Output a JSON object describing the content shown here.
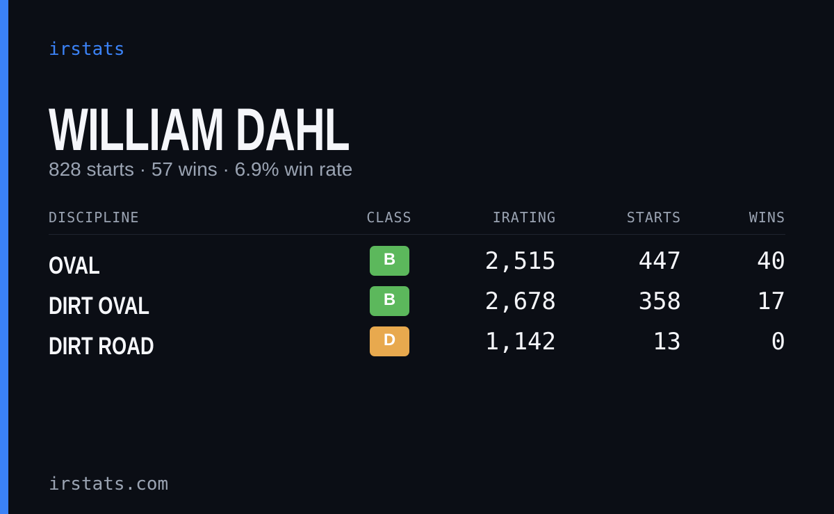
{
  "brand": "irstats",
  "driver": {
    "name": "WILLIAM DAHL",
    "summary": "828 starts · 57 wins · 6.9% win rate"
  },
  "table": {
    "headers": [
      "DISCIPLINE",
      "CLASS",
      "IRATING",
      "STARTS",
      "WINS"
    ],
    "rows": [
      {
        "discipline": "OVAL",
        "class": {
          "label": "B",
          "color": "#5cb85c"
        },
        "irating": "2,515",
        "starts": "447",
        "wins": "40"
      },
      {
        "discipline": "DIRT OVAL",
        "class": {
          "label": "B",
          "color": "#5cb85c"
        },
        "irating": "2,678",
        "starts": "358",
        "wins": "17"
      },
      {
        "discipline": "DIRT ROAD",
        "class": {
          "label": "D",
          "color": "#e8a94e"
        },
        "irating": "1,142",
        "starts": "13",
        "wins": "0"
      }
    ]
  },
  "footer": "irstats.com"
}
